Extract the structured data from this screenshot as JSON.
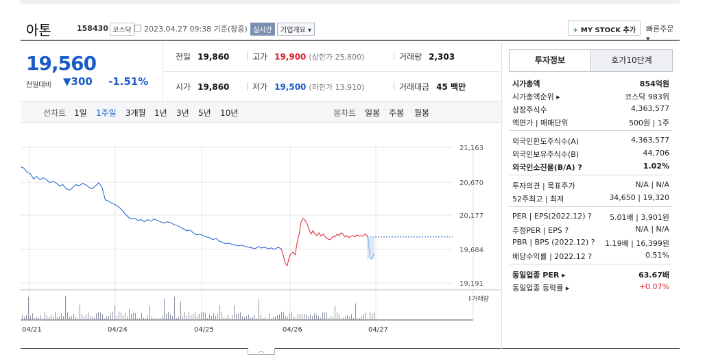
{
  "header": {
    "name": "아톤",
    "code": "158430",
    "market": "코스닥",
    "datetime": "2023.04.27 09:38 기준(장중)",
    "live": "실시간",
    "company_info": "기업개요 ▾",
    "mystock_plus": "+",
    "mystock": "MY STOCK 추가",
    "quick_order": "빠른주문 ▾"
  },
  "price": {
    "current": "19,560",
    "prev_label": "전일대비",
    "change_arrow": "▼",
    "change": "300",
    "change_rate": "-1.51%"
  },
  "stats": {
    "prev_close_label": "전일",
    "prev_close": "19,860",
    "high_label": "고가",
    "high": "19,900",
    "upper_limit": "(상한가 25,800)",
    "volume_label": "거래량",
    "volume": "2,303",
    "open_label": "시가",
    "open": "19,860",
    "low_label": "저가",
    "low": "19,500",
    "lower_limit": "(하한가 13,910)",
    "amount_label": "거래대금",
    "amount": "45 백만"
  },
  "period_bar": {
    "line_header": "선차트",
    "line_periods": [
      "1일",
      "1주일",
      "3개월",
      "1년",
      "3년",
      "5년",
      "10년"
    ],
    "active": "1주일",
    "candle_header": "봉차트",
    "candle_periods": [
      "일봉",
      "주봉",
      "월봉"
    ]
  },
  "chart_data": {
    "type": "line",
    "y_ticks": [
      "21,163",
      "20,670",
      "20,177",
      "19,684",
      "19,191"
    ],
    "ylim": [
      19191,
      21163
    ],
    "x_ticks": [
      "04/21",
      "04/24",
      "04/25",
      "04/26",
      "04/27"
    ],
    "volume_label": "거래량",
    "colors": {
      "down": "#1a5bc9",
      "up": "#d8232a",
      "ref": "#1a5bc9"
    },
    "reference_price": 19860,
    "series": [
      {
        "values": [
          20880,
          20860,
          20800,
          20780,
          20700,
          20740,
          20690,
          20720,
          20690,
          20650,
          20670,
          20640,
          20600,
          20620,
          20560,
          20540,
          20580,
          20620,
          20600,
          20640,
          20620,
          20580,
          20560,
          20600,
          20650,
          20580,
          20400,
          20380,
          20350,
          20330,
          20300,
          20260,
          20200,
          20150,
          20120,
          20130,
          20100,
          20110,
          20080,
          20110,
          20090,
          20120,
          20100,
          20080,
          20060,
          20080,
          20070,
          20040,
          20030,
          20000,
          19980,
          19950,
          19960,
          19920,
          19890,
          19900,
          19880,
          19860,
          19850,
          19820,
          19840,
          19800,
          19780,
          19760,
          19770,
          19750,
          19740,
          19730,
          19740,
          19720,
          19710,
          19700,
          19690,
          19720,
          19700,
          19710,
          19690,
          19700,
          19680,
          19710,
          19690
        ]
      },
      {
        "values": [
          19690,
          19600,
          19480,
          19440,
          19560,
          19620,
          19640,
          19600,
          19780,
          19900,
          20080,
          20130,
          20100,
          20050,
          19970,
          19900,
          19950,
          19900,
          19880,
          19920,
          19870,
          19900,
          19860,
          19840,
          19820,
          19830,
          19870,
          19860,
          19900,
          19880,
          19920,
          19900,
          19860,
          19880,
          19850,
          19870,
          19880,
          19860,
          19890,
          19870,
          19880,
          19870,
          19900,
          19880
        ]
      },
      {
        "values": [
          19880,
          19860,
          19700,
          19560,
          19540,
          19560,
          19600,
          19620
        ]
      }
    ]
  },
  "right_panel": {
    "tab_active": "투자정보",
    "tab_other": "호가10단계",
    "rows1": [
      {
        "k": "시가총액",
        "v": "854억원",
        "bold": true
      },
      {
        "k": "시가총액순위 ▸",
        "v": "코스닥 983위"
      },
      {
        "k": "상장주식수",
        "v": "4,363,577"
      },
      {
        "k": "액면가 | 매매단위",
        "v": "500원 | 1주"
      }
    ],
    "rows2": [
      {
        "k": "외국인한도주식수(A)",
        "v": "4,363,577"
      },
      {
        "k": "외국인보유주식수(B)",
        "v": "44,706"
      },
      {
        "k": "외국인소진율(B/A) ?",
        "v": "1.02%",
        "bold": true
      }
    ],
    "rows3": [
      {
        "k": "투자의견 | 목표주가",
        "v": "N/A | N/A"
      },
      {
        "k": "52주최고 | 최저",
        "v": "34,650 | 19,320"
      }
    ],
    "rows4": [
      {
        "k": "PER | EPS(2022.12) ?",
        "v": "5.01배 | 3,901원"
      },
      {
        "k": "추정PER | EPS ?",
        "v": "N/A | N/A"
      },
      {
        "k": "PBR | BPS (2022.12) ?",
        "v": "1.19배 | 16,399원"
      },
      {
        "k": "배당수익률 | 2022.12 ?",
        "v": "0.51%"
      }
    ],
    "rows5": [
      {
        "k": "동일업종 PER ▸",
        "v": "63.67배",
        "bold": true
      },
      {
        "k": "동일업종 등락률 ▸",
        "v": "+0.07%",
        "red": true
      }
    ]
  }
}
